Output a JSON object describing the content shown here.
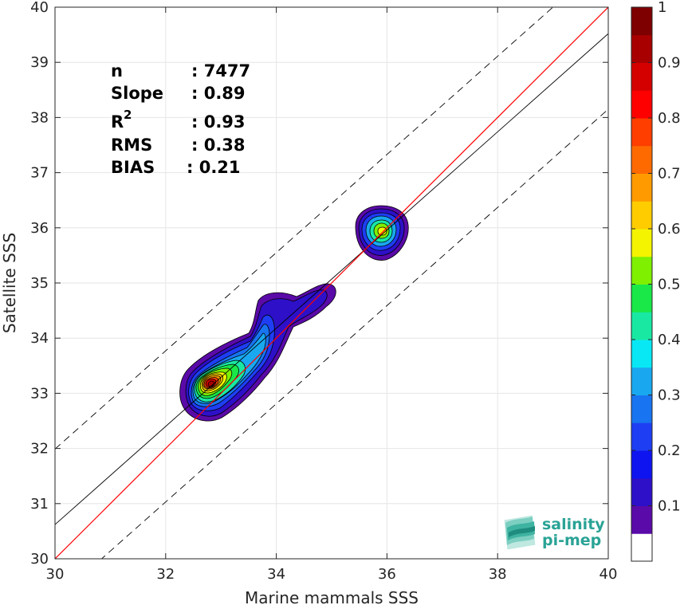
{
  "chart_data": {
    "type": "heatmap",
    "title": "",
    "xlabel": "Marine mammals SSS",
    "ylabel": "Satellite SSS",
    "xlim": [
      30,
      40
    ],
    "ylim": [
      30,
      40
    ],
    "x_ticks": [
      "30",
      "32",
      "34",
      "36",
      "38",
      "40"
    ],
    "y_ticks": [
      "30",
      "31",
      "32",
      "33",
      "34",
      "35",
      "36",
      "37",
      "38",
      "39",
      "40"
    ],
    "grid": true,
    "stats": {
      "n_label": "n",
      "n_value": ": 7477",
      "slope_label": "Slope",
      "slope_value": ": 0.89",
      "r2_label": "R",
      "r2_sup": "2",
      "r2_value": ": 0.93",
      "rms_label": "RMS",
      "rms_value": ": 0.38",
      "bias_label": "BIAS",
      "bias_value": ": 0.21"
    },
    "reference_lines": {
      "identity": {
        "slope": 1,
        "intercept": 0,
        "color": "#ff0000"
      },
      "fit": {
        "slope": 0.89,
        "intercept_at_30": 30.62,
        "color": "#000000"
      },
      "offsets": [
        1.37,
        -1.37
      ]
    },
    "clusters": [
      {
        "center": [
          32.87,
          33.15
        ],
        "peak": 1.0
      },
      {
        "center": [
          35.93,
          35.95
        ],
        "peak": 0.62
      }
    ],
    "colorbar": {
      "ticks": [
        "0.1",
        "0.2",
        "0.3",
        "0.4",
        "0.5",
        "0.6",
        "0.7",
        "0.8",
        "0.9",
        "1"
      ],
      "range": [
        0,
        1
      ],
      "colors": [
        "#ffffff",
        "#5a0aa8",
        "#2d10c8",
        "#0d14f0",
        "#1e3ef4",
        "#1874f0",
        "#19a8ef",
        "#08e8f4",
        "#19e8a3",
        "#19e848",
        "#7ef000",
        "#f4f400",
        "#ffcc00",
        "#ff9a00",
        "#ff6a00",
        "#ff3e00",
        "#ff0000",
        "#d40000",
        "#a80000",
        "#7f0000"
      ]
    },
    "logo": {
      "line1": "salinity",
      "line2": "pi-mep"
    }
  }
}
